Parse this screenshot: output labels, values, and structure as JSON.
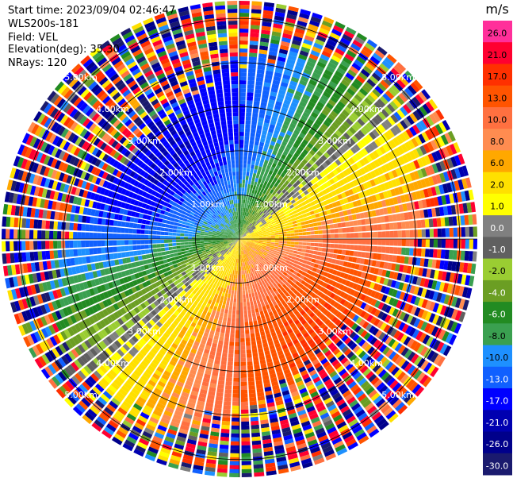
{
  "header": {
    "start_time": "Start time: 2023/09/04 02:46:47",
    "instrument": "WLS200s-181",
    "field": "Field: VEL",
    "elevation": "Elevation(deg): 35.30",
    "nrays": "NRays: 120"
  },
  "chart_data": {
    "type": "ppi",
    "field": "VEL",
    "units": "m/s",
    "n_rays": 120,
    "elevation_deg": 35.3,
    "max_range_km": 5.4,
    "range_rings_km": [
      1,
      2,
      3,
      4,
      5
    ],
    "range_ring_labels": [
      "1.00km",
      "2.00km",
      "3.00km",
      "4.00km",
      "5.00km"
    ],
    "colorbar": {
      "title": "m/s",
      "ticks": [
        "26.0",
        "21.0",
        "17.0",
        "13.0",
        "10.0",
        "8.0",
        "6.0",
        "2.0",
        "1.0",
        "0.0",
        "-1.0",
        "-2.0",
        "-4.0",
        "-6.0",
        "-8.0",
        "-10.0",
        "-13.0",
        "-17.0",
        "-21.0",
        "-26.0",
        "-30.0"
      ],
      "colors": [
        "#ff2f9a",
        "#ff0030",
        "#ff3000",
        "#ff5400",
        "#ff7040",
        "#ff8c50",
        "#ffa800",
        "#ffe000",
        "#ffff00",
        "#808080",
        "#606060",
        "#9acd32",
        "#6b9e23",
        "#228b22",
        "#3aa050",
        "#1e90ff",
        "#1060ff",
        "#0000ff",
        "#0000b0",
        "#00008b",
        "#1a1a6e"
      ]
    },
    "wind_pattern": {
      "description_values": {
        "receding_peak_m_s": 17.0,
        "receding_azimuth_deg": 140,
        "approaching_peak_m_s": -17.0,
        "approaching_azimuth_deg": 320,
        "zero_line_azimuth_deg": 50
      }
    }
  }
}
